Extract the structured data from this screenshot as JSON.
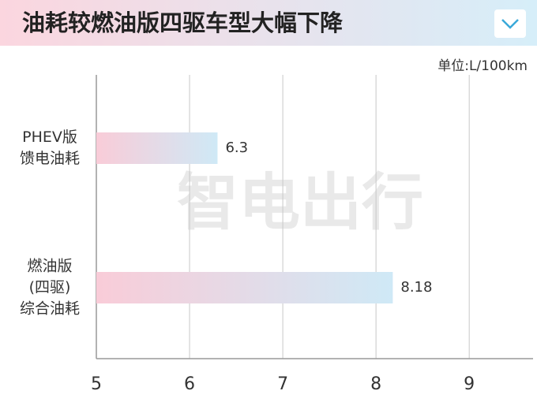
{
  "chart_data": {
    "type": "hbar",
    "title": "油耗较燃油版四驱车型大幅下降",
    "unit": "单位:L/100km",
    "watermark": "智电出行",
    "categories": [
      "PHEV版\n馈电油耗",
      "燃油版\n(四驱)\n综合油耗"
    ],
    "values": [
      6.3,
      8.18
    ],
    "colors": [
      "#f9ccd8",
      "#cfe9f6"
    ],
    "xlim": [
      5,
      9.6
    ],
    "xticks": [
      5,
      6,
      7,
      8,
      9
    ],
    "grid": true
  }
}
